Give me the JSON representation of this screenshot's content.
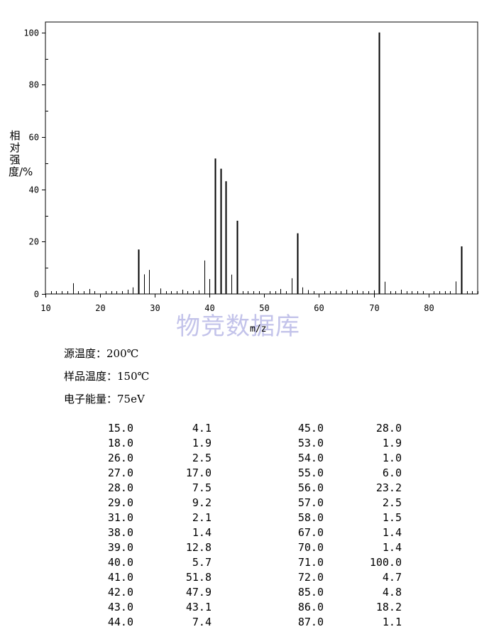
{
  "page": {
    "watermark": "物竞数据库",
    "ylabel": "相对强度/%",
    "xlabel": "m/z",
    "conditions": [
      {
        "text": "源温度：200℃"
      },
      {
        "text": "样品温度：150℃"
      },
      {
        "text": "电子能量：75eV"
      }
    ]
  },
  "table": {
    "left": [
      {
        "mz": "15.0",
        "abundance": "4.1"
      },
      {
        "mz": "18.0",
        "abundance": "1.9"
      },
      {
        "mz": "26.0",
        "abundance": "2.5"
      },
      {
        "mz": "27.0",
        "abundance": "17.0"
      },
      {
        "mz": "28.0",
        "abundance": "7.5"
      },
      {
        "mz": "29.0",
        "abundance": "9.2"
      },
      {
        "mz": "31.0",
        "abundance": "2.1"
      },
      {
        "mz": "38.0",
        "abundance": "1.4"
      },
      {
        "mz": "39.0",
        "abundance": "12.8"
      },
      {
        "mz": "40.0",
        "abundance": "5.7"
      },
      {
        "mz": "41.0",
        "abundance": "51.8"
      },
      {
        "mz": "42.0",
        "abundance": "47.9"
      },
      {
        "mz": "43.0",
        "abundance": "43.1"
      },
      {
        "mz": "44.0",
        "abundance": "7.4"
      }
    ],
    "right": [
      {
        "mz": "45.0",
        "abundance": "28.0"
      },
      {
        "mz": "53.0",
        "abundance": "1.9"
      },
      {
        "mz": "54.0",
        "abundance": "1.0"
      },
      {
        "mz": "55.0",
        "abundance": "6.0"
      },
      {
        "mz": "56.0",
        "abundance": "23.2"
      },
      {
        "mz": "57.0",
        "abundance": "2.5"
      },
      {
        "mz": "58.0",
        "abundance": "1.5"
      },
      {
        "mz": "67.0",
        "abundance": "1.4"
      },
      {
        "mz": "70.0",
        "abundance": "1.4"
      },
      {
        "mz": "71.0",
        "abundance": "100.0"
      },
      {
        "mz": "72.0",
        "abundance": "4.7"
      },
      {
        "mz": "85.0",
        "abundance": "4.8"
      },
      {
        "mz": "86.0",
        "abundance": "18.2"
      },
      {
        "mz": "87.0",
        "abundance": "1.1"
      }
    ]
  },
  "chart_data": {
    "type": "bar",
    "title": "",
    "xlabel": "m/z",
    "ylabel": "相对强度/%",
    "xlim": [
      10,
      89
    ],
    "ylim": [
      0,
      104
    ],
    "xticks": [
      10,
      20,
      30,
      40,
      50,
      60,
      70,
      80
    ],
    "yticks": [
      0,
      20,
      40,
      60,
      80,
      100
    ],
    "grid": false,
    "series": [
      {
        "x": [
          15,
          18,
          26,
          27,
          28,
          29,
          31,
          38,
          39,
          40,
          41,
          42,
          43,
          44,
          45,
          53,
          54,
          55,
          56,
          57,
          58,
          67,
          70,
          71,
          72,
          85,
          86,
          87
        ],
        "values": [
          4.1,
          1.9,
          2.5,
          17.0,
          7.5,
          9.2,
          2.1,
          1.4,
          12.8,
          5.7,
          51.8,
          47.9,
          43.1,
          7.4,
          28.0,
          1.9,
          1.0,
          6.0,
          23.2,
          2.5,
          1.5,
          1.4,
          1.4,
          100.0,
          4.7,
          4.8,
          18.2,
          1.1
        ]
      }
    ]
  }
}
